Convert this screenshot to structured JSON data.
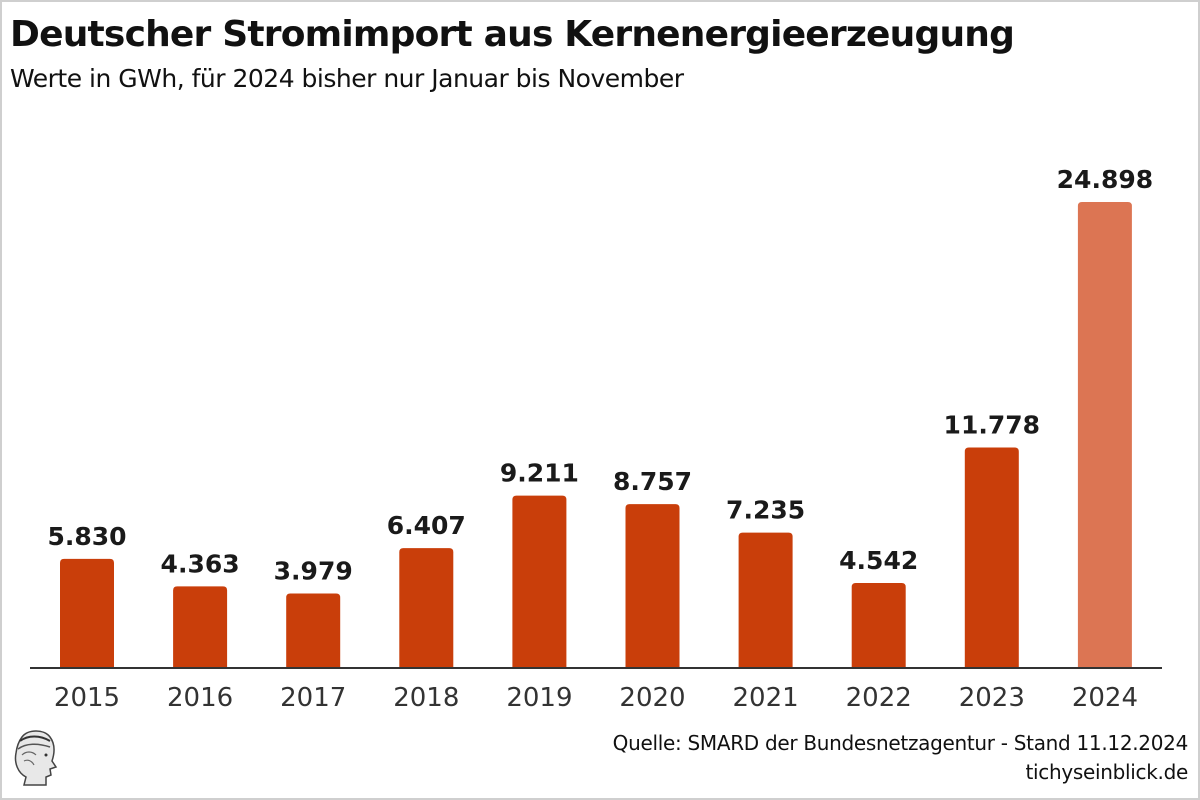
{
  "chart_data": {
    "type": "bar",
    "title": "Deutscher Stromimport aus Kernenergieerzeugung",
    "subtitle": "Werte in GWh, für 2024 bisher nur Januar bis November",
    "xlabel": "",
    "ylabel": "",
    "unit": "GWh",
    "categories": [
      "2015",
      "2016",
      "2017",
      "2018",
      "2019",
      "2020",
      "2021",
      "2022",
      "2023",
      "2024"
    ],
    "values": [
      5830,
      4363,
      3979,
      6407,
      9211,
      8757,
      7235,
      4542,
      11778,
      24898
    ],
    "value_labels": [
      "5.830",
      "4.363",
      "3.979",
      "6.407",
      "9.211",
      "8.757",
      "7.235",
      "4.542",
      "11.778",
      "24.898"
    ],
    "ylim": [
      0,
      24898
    ],
    "grid": false,
    "legend": "none",
    "colors": {
      "default": "#c93e0a",
      "highlight": "#dc7553",
      "highlight_category": "2024"
    }
  },
  "footer": {
    "source": "Quelle: SMARD der Bundesnetzagentur - Stand 11.12.2024",
    "site": "tichyseinblick.de",
    "logo_icon": "hermes-head-logo-icon"
  }
}
